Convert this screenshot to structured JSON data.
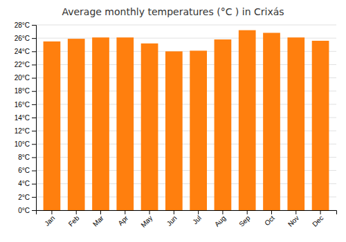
{
  "chart_data": {
    "type": "bar",
    "title": "Average monthly temperatures (°C ) in Crixás",
    "categories": [
      "Jan",
      "Feb",
      "Mar",
      "Apr",
      "May",
      "Jun",
      "Jul",
      "Aug",
      "Sep",
      "Oct",
      "Nov",
      "Dec"
    ],
    "values": [
      25.5,
      25.9,
      26.1,
      26.1,
      25.2,
      24.0,
      24.1,
      25.8,
      27.2,
      26.8,
      26.1,
      25.6
    ],
    "ylim": [
      0,
      28
    ],
    "yticks": [
      {
        "value": 0,
        "label": "0°C"
      },
      {
        "value": 2,
        "label": "2°C"
      },
      {
        "value": 4,
        "label": "4°C"
      },
      {
        "value": 6,
        "label": "6°C"
      },
      {
        "value": 8,
        "label": "8°C"
      },
      {
        "value": 10,
        "label": "10°C"
      },
      {
        "value": 12,
        "label": "12°C"
      },
      {
        "value": 14,
        "label": "14°C"
      },
      {
        "value": 16,
        "label": "16°C"
      },
      {
        "value": 18,
        "label": "18°C"
      },
      {
        "value": 20,
        "label": "20°C"
      },
      {
        "value": 22,
        "label": "22°C"
      },
      {
        "value": 24,
        "label": "24°C"
      },
      {
        "value": 26,
        "label": "26°C"
      },
      {
        "value": 28,
        "label": "28°C"
      }
    ],
    "grid": true
  }
}
